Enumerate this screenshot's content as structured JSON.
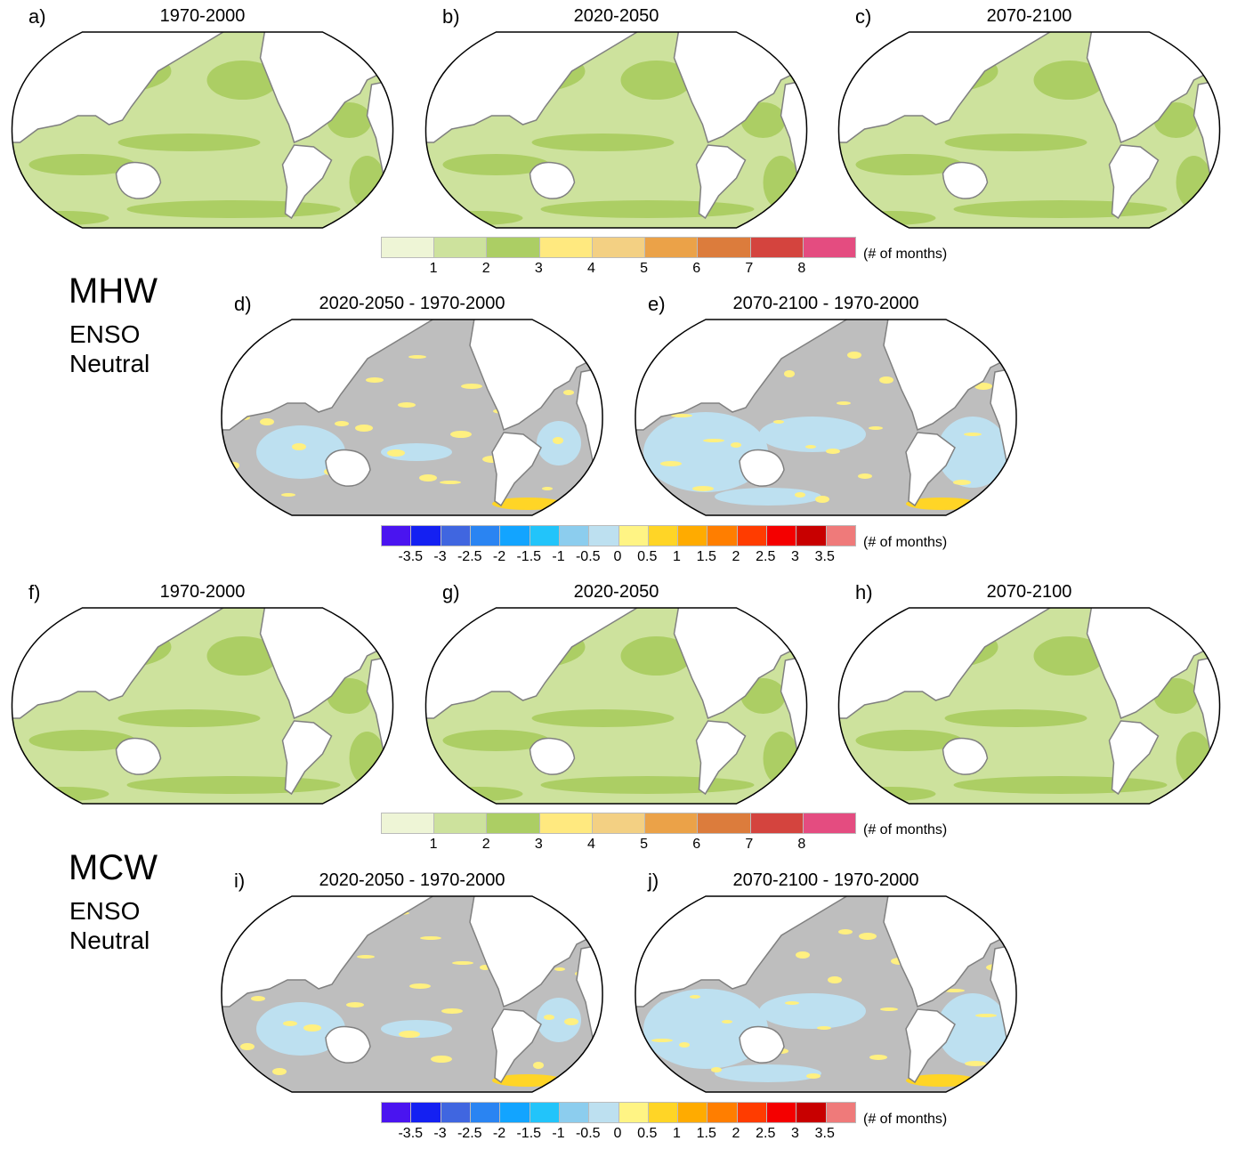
{
  "rows": [
    {
      "group": "MHW",
      "panels": [
        {
          "letter": "a)",
          "title": "1970-2000",
          "kind": "abs"
        },
        {
          "letter": "b)",
          "title": "2020-2050",
          "kind": "abs"
        },
        {
          "letter": "c)",
          "title": "2070-2100",
          "kind": "abs"
        }
      ]
    },
    {
      "group": "MHW",
      "panels": [
        {
          "letter": "d)",
          "title": "2020-2050 - 1970-2000",
          "kind": "diff"
        },
        {
          "letter": "e)",
          "title": "2070-2100 - 1970-2000",
          "kind": "diff"
        }
      ]
    },
    {
      "group": "MCW",
      "panels": [
        {
          "letter": "f)",
          "title": "1970-2000",
          "kind": "abs"
        },
        {
          "letter": "g)",
          "title": "2020-2050",
          "kind": "abs"
        },
        {
          "letter": "h)",
          "title": "2070-2100",
          "kind": "abs"
        }
      ]
    },
    {
      "group": "MCW",
      "panels": [
        {
          "letter": "i)",
          "title": "2020-2050 - 1970-2000",
          "kind": "diff"
        },
        {
          "letter": "j)",
          "title": "2070-2100 - 1970-2000",
          "kind": "diff"
        }
      ]
    }
  ],
  "side_labels": [
    {
      "name": "MHW",
      "sub1": "ENSO",
      "sub2": "Neutral"
    },
    {
      "name": "MCW",
      "sub1": "ENSO",
      "sub2": "Neutral"
    }
  ],
  "colorbar_abs": {
    "colors": [
      "#eef5d6",
      "#cde29d",
      "#acce64",
      "#ffe97f",
      "#f3d083",
      "#eba248",
      "#dc7c3c",
      "#d4443e",
      "#e44c80"
    ],
    "ticks": [
      "1",
      "2",
      "3",
      "4",
      "5",
      "6",
      "7",
      "8"
    ],
    "unit": "(# of months)"
  },
  "colorbar_diff": {
    "colors": [
      "#4a14f0",
      "#1420f2",
      "#4066e0",
      "#2a84f2",
      "#12a4ff",
      "#22c4fa",
      "#8ccdee",
      "#bde0f0",
      "#fff484",
      "#ffd526",
      "#ffab00",
      "#ff7e00",
      "#ff3c00",
      "#f40000",
      "#c80000",
      "#ef7a7a"
    ],
    "ticks": [
      "-3.5",
      "-3",
      "-2.5",
      "-2",
      "-1.5",
      "-1",
      "-0.5",
      "0",
      "0.5",
      "1",
      "1.5",
      "2",
      "2.5",
      "3",
      "3.5"
    ],
    "unit": "(# of months)"
  },
  "colors": {
    "land": "#ffffff",
    "coast": "#808080",
    "abs_base": "#cde29d",
    "abs_band": "#acce64",
    "diff_base": "#bebebe",
    "diff_neg": "#bde0f0",
    "diff_pos": "#fff080"
  }
}
